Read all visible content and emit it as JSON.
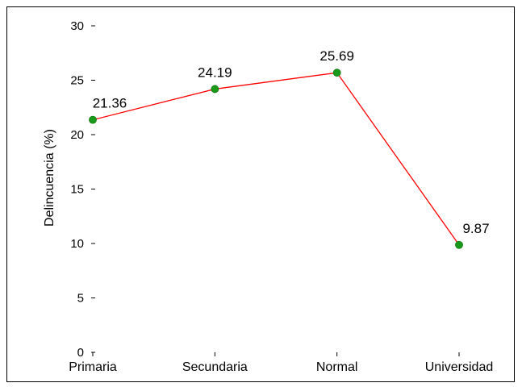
{
  "chart_data": {
    "type": "line",
    "categories": [
      "Primaria",
      "Secundaria",
      "Normal",
      "Universidad"
    ],
    "series": [
      {
        "values": [
          21.36,
          24.19,
          25.69,
          9.87
        ]
      }
    ],
    "data_labels": [
      "21.36",
      "24.19",
      "25.69",
      "9.87"
    ],
    "ylabel": "Delincuencia (%)",
    "xlabel": "",
    "ylim": [
      0,
      30
    ],
    "yticks": [
      0,
      5,
      10,
      15,
      20,
      25,
      30
    ],
    "grid": false,
    "line_color": "#ff0000",
    "marker_color": "#1a9a1a"
  }
}
